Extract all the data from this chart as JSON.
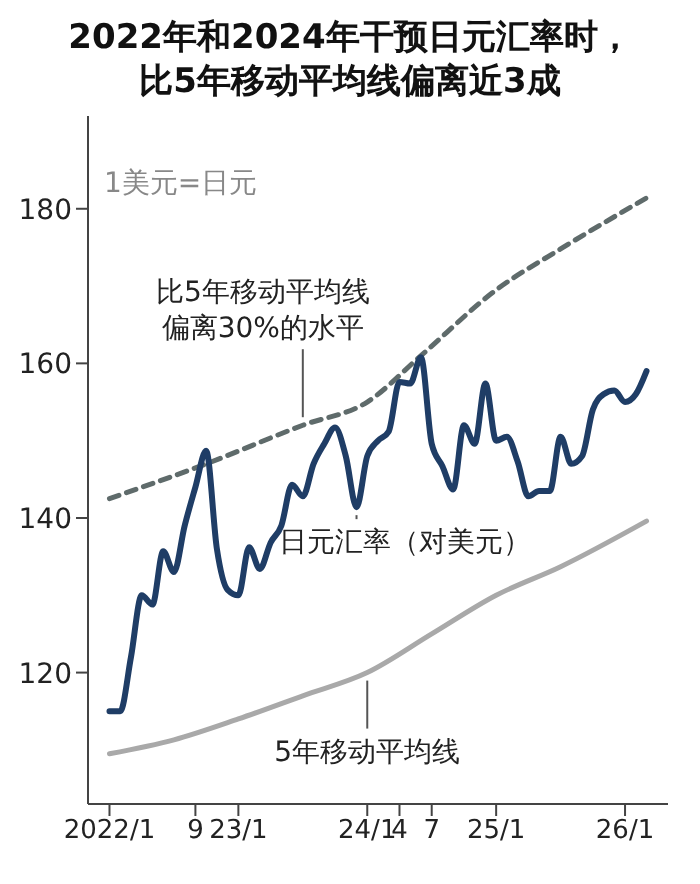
{
  "chart_data": {
    "type": "line",
    "title": "2022年和2024年干预日元汇率时，比5年移动平均线偏离近3成",
    "ylabel": "1美元=日元",
    "x": [
      "2022-01",
      "2022-02",
      "2022-03",
      "2022-04",
      "2022-05",
      "2022-06",
      "2022-07",
      "2022-08",
      "2022-09",
      "2022-10",
      "2022-11",
      "2022-12",
      "2023-01",
      "2023-02",
      "2023-03",
      "2023-04",
      "2023-05",
      "2023-06",
      "2023-07",
      "2023-08",
      "2023-09",
      "2023-10",
      "2023-11",
      "2023-12",
      "2024-01",
      "2024-02",
      "2024-03",
      "2024-04",
      "2024-05",
      "2024-06",
      "2024-07",
      "2024-08",
      "2024-09",
      "2024-10",
      "2024-11",
      "2024-12",
      "2025-01",
      "2025-02",
      "2025-03",
      "2025-04",
      "2025-05",
      "2025-06",
      "2025-07",
      "2025-08",
      "2025-09",
      "2025-10",
      "2025-11",
      "2025-12",
      "2026-01",
      "2026-02",
      "2026-03"
    ],
    "series": [
      {
        "name": "比5年移动平均线偏离30%的水平",
        "color": "#5f6b6b",
        "line_style": "dashed",
        "x": [
          "2022-01",
          "2022-10",
          "2023-07",
          "2024-01",
          "2024-06",
          "2025-01",
          "2025-07",
          "2026-03"
        ],
        "values": [
          142.5,
          147,
          152,
          155,
          161,
          169.5,
          174.8,
          181.4
        ]
      },
      {
        "name": "5年移动平均线",
        "color": "#a9a9a9",
        "x": [
          "2022-01",
          "2022-07",
          "2023-01",
          "2023-07",
          "2024-01",
          "2024-07",
          "2025-01",
          "2025-07",
          "2026-03"
        ],
        "values": [
          109.5,
          111.3,
          114,
          117,
          120,
          125,
          130,
          133.7,
          139.6
        ]
      },
      {
        "name": "日元汇率（对美元）",
        "color": "#1f3d66",
        "values": [
          115,
          115,
          122,
          130,
          128.8,
          135.7,
          133,
          139,
          144,
          148.7,
          136,
          130.7,
          130,
          136.2,
          133.4,
          136.8,
          139,
          144.3,
          142.8,
          147,
          149.6,
          151.7,
          148,
          141.4,
          148,
          150,
          151.2,
          157.6,
          157.4,
          160.8,
          149.6,
          146.7,
          143.7,
          152,
          149.6,
          157.4,
          150,
          150.5,
          147.3,
          142.8,
          143.5,
          143.5,
          150.5,
          147,
          148,
          154,
          156,
          156.5,
          155,
          156,
          159
        ]
      }
    ],
    "xlim": [
      "2021-11",
      "2026-05"
    ],
    "xticks": [
      {
        "value": "2022-01",
        "label": "2022/1"
      },
      {
        "value": "2022-09",
        "label": "9"
      },
      {
        "value": "2023-01",
        "label": "23/1"
      },
      {
        "value": "2024-01",
        "label": "24/1"
      },
      {
        "value": "2024-04",
        "label": "4"
      },
      {
        "value": "2024-07",
        "label": "7"
      },
      {
        "value": "2025-01",
        "label": "25/1"
      },
      {
        "value": "2026-01",
        "label": "26/1"
      }
    ],
    "ylim": [
      103,
      192
    ],
    "yticks": [
      120,
      140,
      160,
      180
    ],
    "marker": "none"
  }
}
